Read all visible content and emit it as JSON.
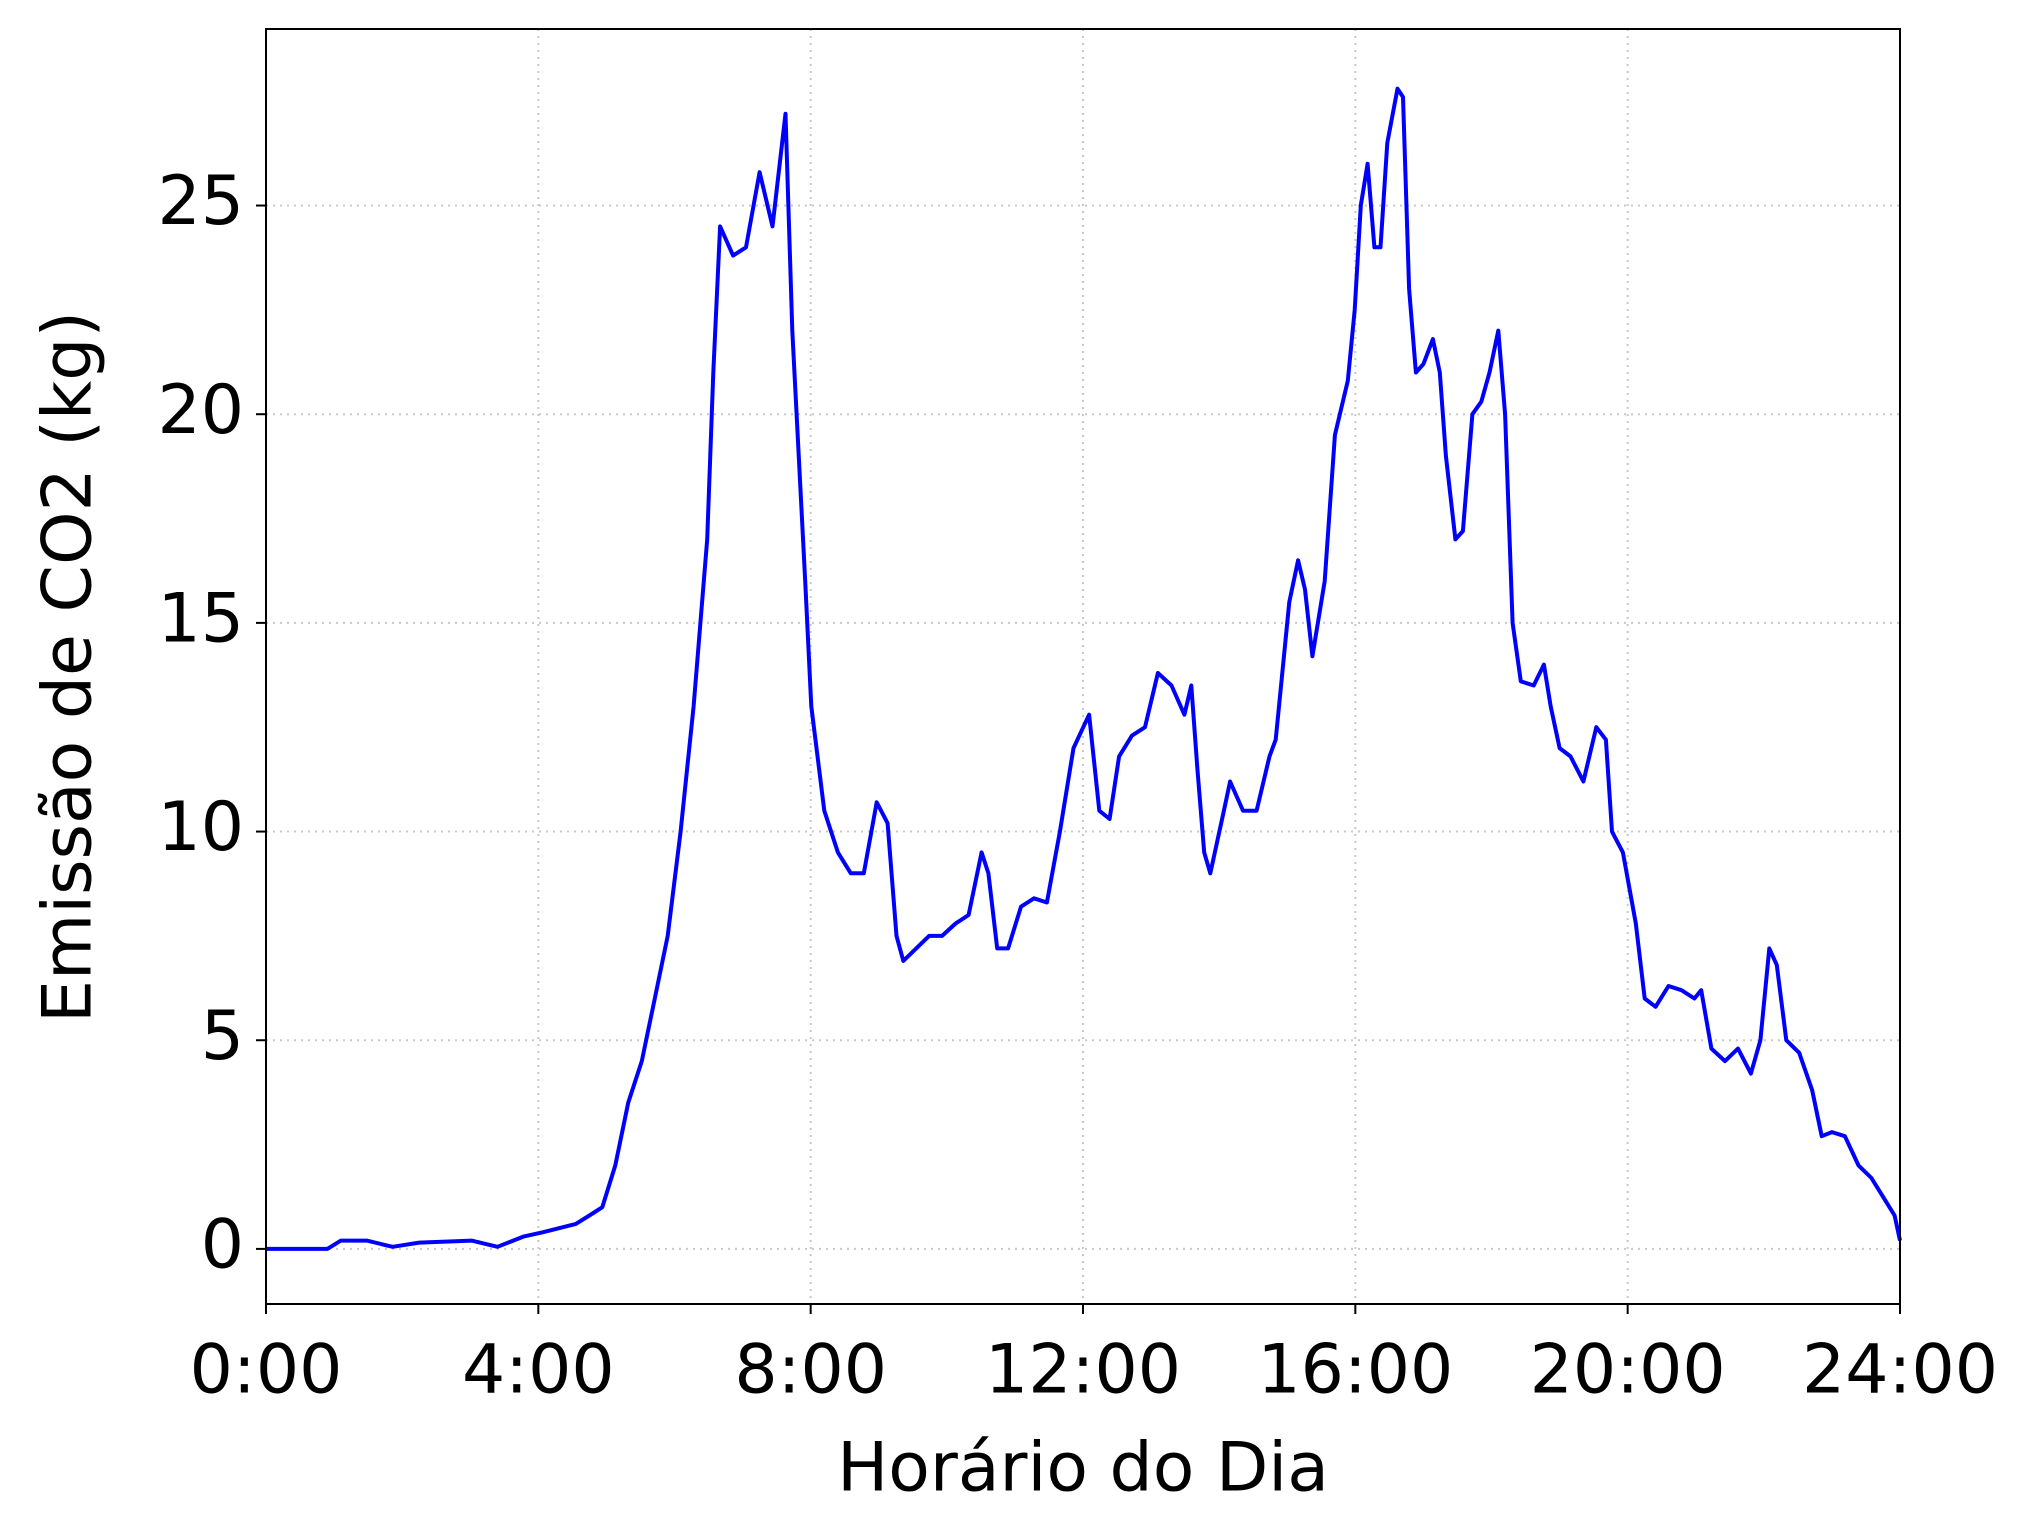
{
  "chart_data": {
    "type": "line",
    "xlabel": "Horário do Dia",
    "ylabel": "Emissão de CO2 (kg)",
    "x": [
      0,
      0.9,
      1.1,
      1.48,
      1.86,
      2.25,
      3.02,
      3.4,
      3.79,
      4.07,
      4.55,
      4.75,
      4.94,
      5.13,
      5.32,
      5.52,
      5.71,
      5.9,
      6.09,
      6.28,
      6.48,
      6.57,
      6.67,
      6.86,
      7.05,
      7.25,
      7.44,
      7.63,
      7.73,
      7.92,
      8.01,
      8.2,
      8.4,
      8.59,
      8.78,
      8.97,
      9.13,
      9.26,
      9.36,
      9.55,
      9.74,
      9.93,
      10.13,
      10.32,
      10.51,
      10.61,
      10.74,
      10.9,
      11.09,
      11.28,
      11.47,
      11.66,
      11.86,
      12.09,
      12.24,
      12.39,
      12.53,
      12.72,
      12.91,
      13.1,
      13.3,
      13.49,
      13.59,
      13.68,
      13.78,
      13.87,
      14.07,
      14.16,
      14.35,
      14.55,
      14.74,
      14.83,
      15.03,
      15.16,
      15.26,
      15.37,
      15.55,
      15.7,
      15.89,
      15.99,
      16.08,
      16.18,
      16.28,
      16.37,
      16.47,
      16.62,
      16.7,
      16.79,
      16.89,
      17.0,
      17.14,
      17.24,
      17.33,
      17.47,
      17.58,
      17.72,
      17.85,
      17.97,
      18.1,
      18.2,
      18.31,
      18.43,
      18.62,
      18.77,
      18.87,
      19.0,
      19.16,
      19.35,
      19.54,
      19.68,
      19.77,
      19.93,
      20.12,
      20.25,
      20.41,
      20.6,
      20.79,
      20.98,
      21.08,
      21.23,
      21.43,
      21.62,
      21.81,
      21.95,
      22.08,
      22.19,
      22.33,
      22.52,
      22.71,
      22.85,
      23.0,
      23.19,
      23.39,
      23.58,
      23.77,
      23.92,
      24.0
    ],
    "series": [
      {
        "name": "Emissão de CO2",
        "color": "#0000ff",
        "values": [
          0,
          0,
          0.2,
          0.2,
          0.05,
          0.15,
          0.2,
          0.05,
          0.3,
          0.4,
          0.6,
          0.8,
          1.0,
          2.0,
          3.5,
          4.5,
          6.0,
          7.5,
          10.0,
          13.0,
          17.0,
          21.0,
          24.5,
          23.8,
          24.0,
          25.8,
          24.5,
          27.2,
          22.0,
          16.0,
          13.0,
          10.5,
          9.5,
          9.0,
          9.0,
          10.7,
          10.2,
          7.5,
          6.9,
          7.2,
          7.5,
          7.5,
          7.8,
          8.0,
          9.5,
          9.0,
          7.2,
          7.2,
          8.2,
          8.4,
          8.3,
          10.0,
          12.0,
          12.8,
          10.5,
          10.3,
          11.8,
          12.3,
          12.5,
          13.8,
          13.5,
          12.8,
          13.5,
          11.5,
          9.5,
          9.0,
          10.5,
          11.2,
          10.5,
          10.5,
          11.8,
          12.2,
          15.5,
          16.5,
          15.8,
          14.2,
          16.0,
          19.5,
          20.8,
          22.5,
          25.0,
          26.0,
          24.0,
          24.0,
          26.5,
          27.8,
          27.6,
          23.0,
          21.0,
          21.2,
          21.8,
          21.0,
          19.0,
          17.0,
          17.2,
          20.0,
          20.3,
          21.0,
          22.0,
          20.0,
          15.0,
          13.6,
          13.5,
          14.0,
          13.0,
          12.0,
          11.8,
          11.2,
          12.5,
          12.2,
          10.0,
          9.5,
          7.8,
          6.0,
          5.8,
          6.3,
          6.2,
          6.0,
          6.2,
          4.8,
          4.5,
          4.8,
          4.2,
          5.0,
          7.2,
          6.8,
          5.0,
          4.7,
          3.8,
          2.7,
          2.8,
          2.7,
          2.0,
          1.7,
          1.2,
          0.8,
          0.2
        ]
      }
    ],
    "xlim": [
      0,
      24
    ],
    "xticks": [
      {
        "value": 0,
        "label": "0:00"
      },
      {
        "value": 4,
        "label": "4:00"
      },
      {
        "value": 8,
        "label": "8:00"
      },
      {
        "value": 12,
        "label": "12:00"
      },
      {
        "value": 16,
        "label": "16:00"
      },
      {
        "value": 20,
        "label": "20:00"
      },
      {
        "value": 24,
        "label": "24:00"
      }
    ],
    "ylim": [
      -1.32,
      29.23
    ],
    "yticks": [
      0,
      5,
      10,
      15,
      20,
      25
    ],
    "grid": true
  }
}
